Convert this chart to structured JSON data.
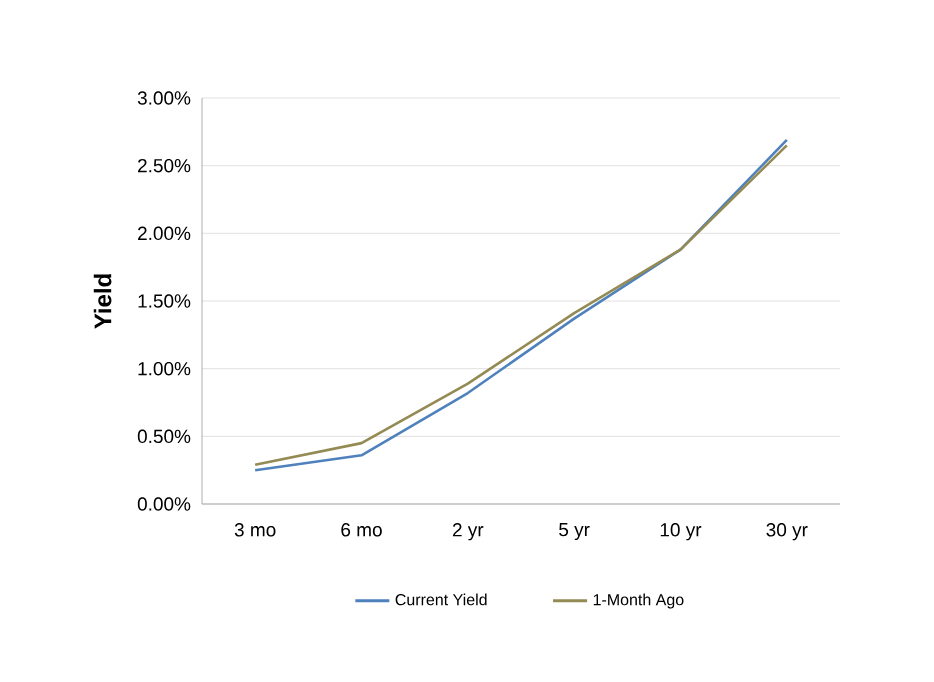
{
  "chart_data": {
    "type": "line",
    "ylabel": "Yield",
    "categories": [
      "3 mo",
      "6 mo",
      "2 yr",
      "5 yr",
      "10 yr",
      "30 yr"
    ],
    "series": [
      {
        "name": "Current Yield",
        "color": "#4f81bd",
        "values": [
          0.25,
          0.36,
          0.82,
          1.37,
          1.88,
          2.69
        ]
      },
      {
        "name": "1-Month Ago",
        "color": "#948a54",
        "values": [
          0.29,
          0.45,
          0.89,
          1.41,
          1.88,
          2.65
        ]
      }
    ],
    "ylim": [
      0,
      3
    ],
    "yticks": [
      {
        "value": 0,
        "label": "0.00%"
      },
      {
        "value": 0.5,
        "label": "0.50%"
      },
      {
        "value": 1,
        "label": "1.00%"
      },
      {
        "value": 1.5,
        "label": "1.50%"
      },
      {
        "value": 2,
        "label": "2.00%"
      },
      {
        "value": 2.5,
        "label": "2.50%"
      },
      {
        "value": 3,
        "label": "3.00%"
      }
    ],
    "grid": "y",
    "legend": "bottom",
    "marker": "none",
    "line_style": "solid"
  }
}
